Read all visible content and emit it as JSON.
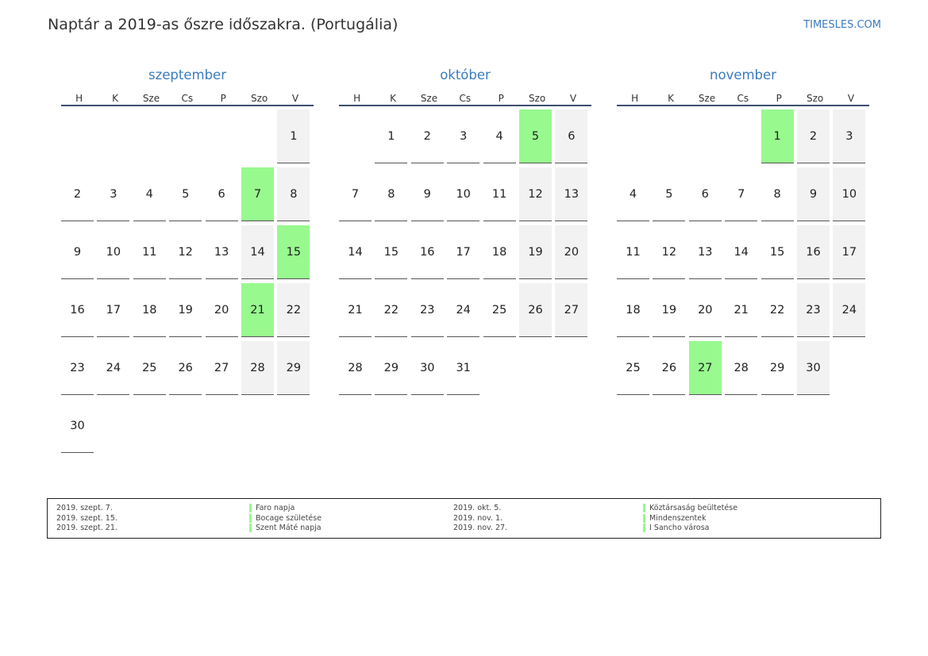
{
  "header": {
    "title": "Naptár a 2019-as őszre időszakra. (Portugália)",
    "brand": "TIMESLES.COM"
  },
  "weekdays": [
    "H",
    "K",
    "Sze",
    "Cs",
    "P",
    "Szo",
    "V"
  ],
  "months": [
    {
      "name": "szeptember",
      "start_weekday": 6,
      "days": 30,
      "holidays": [
        7,
        15,
        21
      ]
    },
    {
      "name": "október",
      "start_weekday": 1,
      "days": 31,
      "holidays": [
        5
      ]
    },
    {
      "name": "november",
      "start_weekday": 4,
      "days": 30,
      "holidays": [
        1,
        27
      ]
    }
  ],
  "legend": [
    {
      "date": "2019. szept. 7.",
      "name": "Faro napja"
    },
    {
      "date": "2019. szept. 15.",
      "name": "Bocage születése"
    },
    {
      "date": "2019. szept. 21.",
      "name": "Szent Máté napja"
    },
    {
      "date": "2019. okt. 5.",
      "name": "Köztársaság beültetése"
    },
    {
      "date": "2019. nov. 1.",
      "name": "Mindenszentek"
    },
    {
      "date": "2019. nov. 27.",
      "name": "I Sancho városa"
    }
  ],
  "colors": {
    "holiday": "#98f98f",
    "weekend": "#f2f2f2",
    "accent": "#3a7bbf"
  }
}
